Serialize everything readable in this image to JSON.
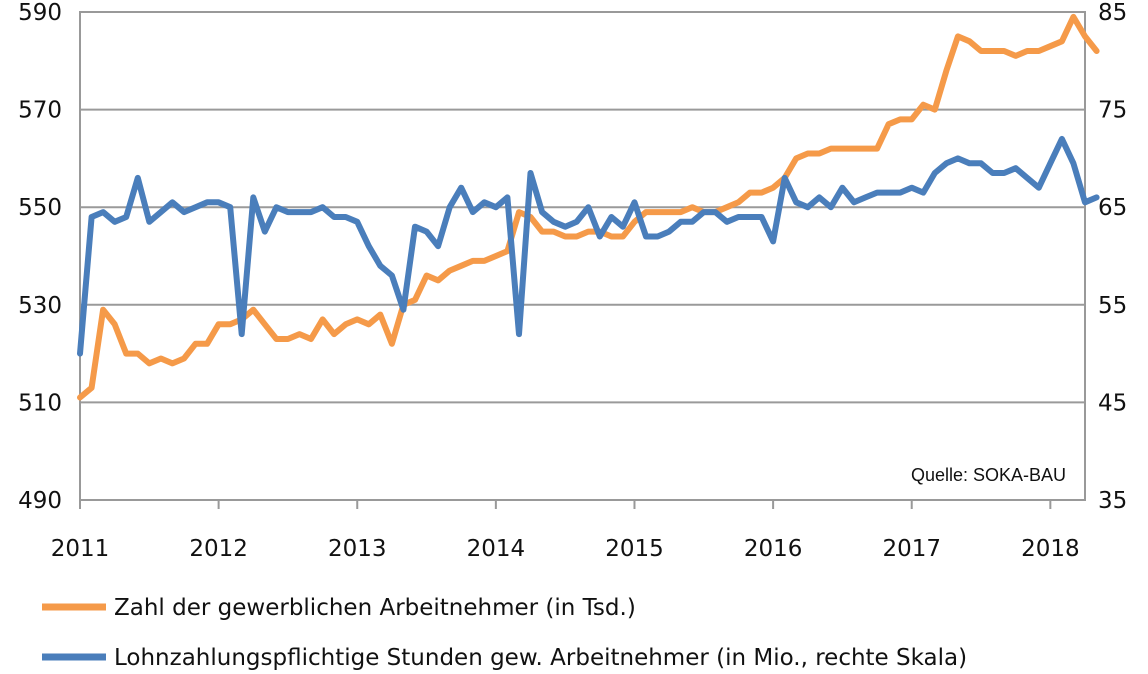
{
  "chart_data": {
    "type": "line",
    "source_note": "Quelle: SOKA-BAU",
    "x_axis": {
      "min": 2011,
      "max": 2018.25,
      "ticks": [
        "2011",
        "2012",
        "2013",
        "2014",
        "2015",
        "2016",
        "2017",
        "2018"
      ]
    },
    "y_left": {
      "min": 490,
      "max": 590,
      "ticks": [
        "490",
        "510",
        "530",
        "550",
        "570",
        "590"
      ]
    },
    "y_right": {
      "min": 35,
      "max": 85,
      "ticks": [
        "35",
        "45",
        "55",
        "65",
        "75",
        "85"
      ]
    },
    "grid": true,
    "legend_position": "bottom",
    "series": [
      {
        "name": "Zahl der gewerblichen Arbeitnehmer (in Tsd.)",
        "axis": "left",
        "color": "#f59a49",
        "start": "2011-01",
        "values": [
          511,
          513,
          529,
          526,
          520,
          520,
          518,
          519,
          518,
          519,
          522,
          522,
          526,
          526,
          527,
          529,
          526,
          523,
          523,
          524,
          523,
          527,
          524,
          526,
          527,
          526,
          528,
          522,
          530,
          531,
          536,
          535,
          537,
          538,
          539,
          539,
          540,
          541,
          549,
          548,
          545,
          545,
          544,
          544,
          545,
          545,
          544,
          544,
          547,
          549,
          549,
          549,
          549,
          550,
          549,
          549,
          550,
          551,
          553,
          553,
          554,
          556,
          560,
          561,
          561,
          562,
          562,
          562,
          562,
          562,
          567,
          568,
          568,
          571,
          570,
          578,
          585,
          584,
          582,
          582,
          582,
          581,
          582,
          582,
          583,
          584,
          589,
          585,
          582
        ]
      },
      {
        "name": "Lohnzahlungspflichtige Stunden gew. Arbeitnehmer (in Mio., rechte Skala)",
        "axis": "right",
        "color": "#4a7ebb",
        "start": "2011-01",
        "values": [
          50,
          64,
          64.5,
          63.5,
          64,
          68,
          63.5,
          64.5,
          65.5,
          64.5,
          65,
          65.5,
          65.5,
          65,
          52,
          66,
          62.5,
          65,
          64.5,
          64.5,
          64.5,
          65,
          64,
          64,
          63.5,
          61,
          59,
          58,
          54.5,
          63,
          62.5,
          61,
          65,
          67,
          64.5,
          65.5,
          65,
          66,
          52,
          68.5,
          64.5,
          63.5,
          63,
          63.5,
          65,
          62,
          64,
          63,
          65.5,
          62,
          62,
          62.5,
          63.5,
          63.5,
          64.5,
          64.5,
          63.5,
          64,
          64,
          64,
          61.5,
          68,
          65.5,
          65,
          66,
          65,
          67,
          65.5,
          66,
          66.5,
          66.5,
          66.5,
          67,
          66.5,
          68.5,
          69.5,
          70,
          69.5,
          69.5,
          68.5,
          68.5,
          69,
          68,
          67,
          69.5,
          72,
          69.5,
          65.5,
          66
        ]
      }
    ]
  }
}
